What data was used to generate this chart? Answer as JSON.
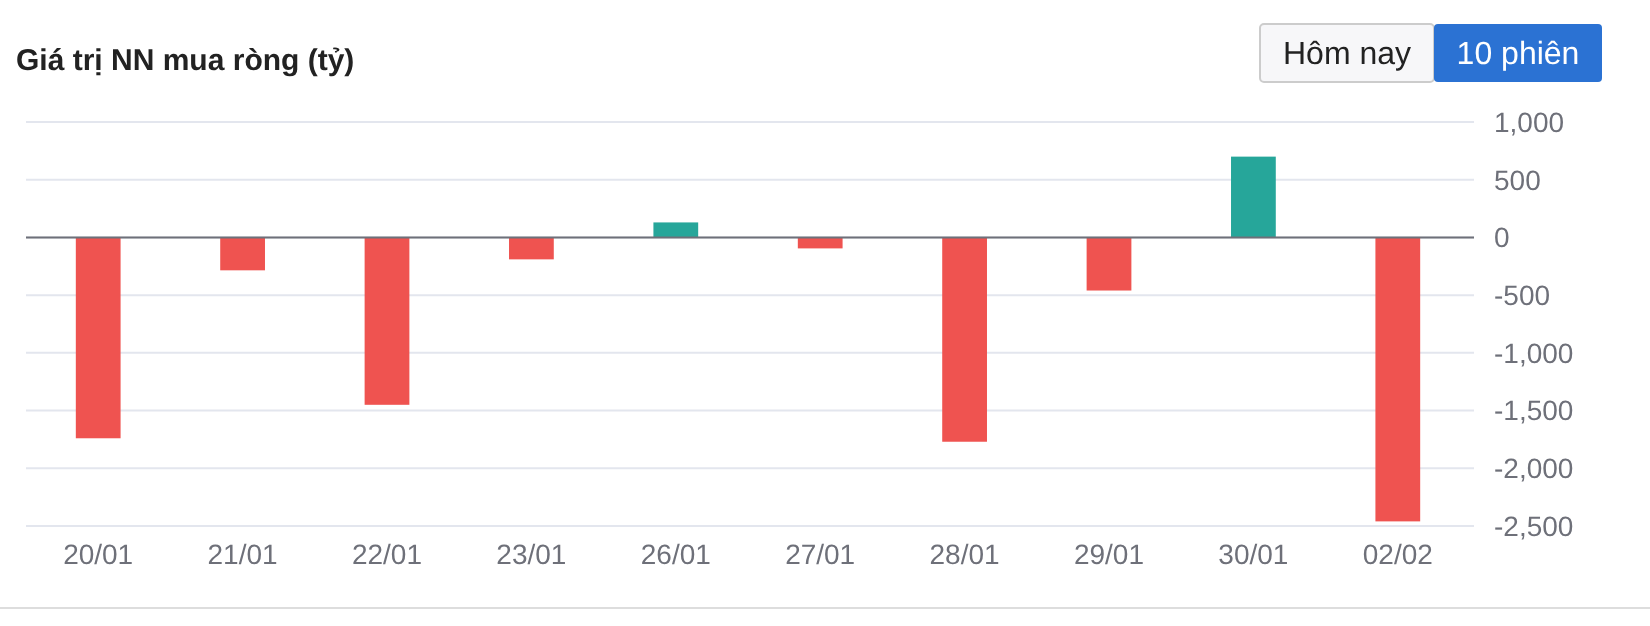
{
  "chart_data": {
    "type": "bar",
    "title": "Giá trị NN mua ròng (tỷ)",
    "categories": [
      "20/01",
      "21/01",
      "22/01",
      "23/01",
      "26/01",
      "27/01",
      "28/01",
      "29/01",
      "30/01",
      "02/02"
    ],
    "values": [
      -1740,
      -285,
      -1450,
      -190,
      130,
      -95,
      -1770,
      -460,
      700,
      -2460
    ],
    "colors": [
      "#ef5350",
      "#ef5350",
      "#ef5350",
      "#ef5350",
      "#26a69a",
      "#ef5350",
      "#ef5350",
      "#ef5350",
      "#26a69a",
      "#ef5350"
    ],
    "ylim": [
      -2500,
      1000
    ],
    "yticks": [
      {
        "value": 1000,
        "label": "1,000"
      },
      500,
      0,
      {
        "value": -500,
        "label": "-500"
      },
      {
        "value": -1000,
        "label": "-1,000"
      },
      {
        "value": -1500,
        "label": "-1,500"
      },
      {
        "value": -2000,
        "label": "-2,000"
      },
      {
        "value": -2500,
        "label": "-2,500"
      }
    ],
    "grid": "y",
    "annotations": [
      "Hôm nay",
      "10 phiên"
    ]
  }
}
